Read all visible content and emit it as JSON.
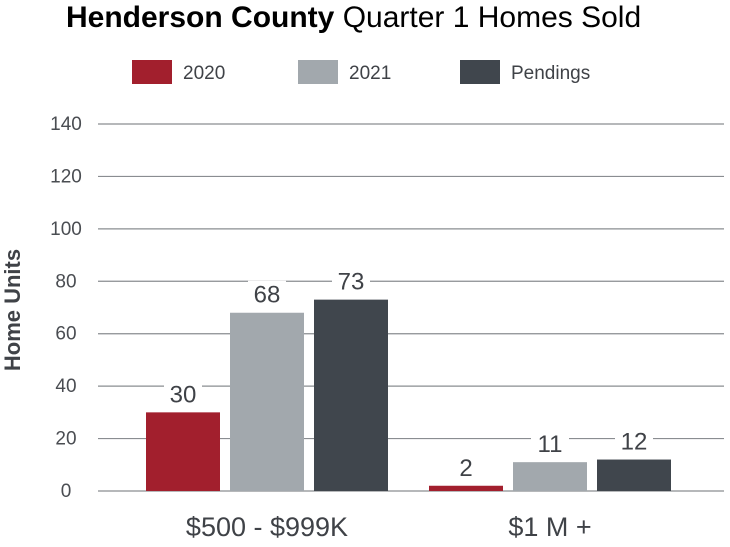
{
  "chart_data": {
    "type": "bar",
    "title_bold": "Henderson County",
    "title_rest": " Quarter 1 Homes Sold",
    "xlabel": "",
    "ylabel": "Home Units",
    "ylim": [
      0,
      140
    ],
    "yticks": [
      0,
      20,
      40,
      60,
      80,
      100,
      120,
      140
    ],
    "grid": true,
    "legend_position": "top",
    "categories": [
      "$500 - $999K",
      "$1 M +"
    ],
    "series": [
      {
        "name": "2020",
        "color": "#a21f2d",
        "values": [
          30,
          2
        ]
      },
      {
        "name": "2021",
        "color": "#a2a8ad",
        "values": [
          68,
          11
        ]
      },
      {
        "name": "Pendings",
        "color": "#40464d",
        "values": [
          73,
          12
        ]
      }
    ]
  }
}
